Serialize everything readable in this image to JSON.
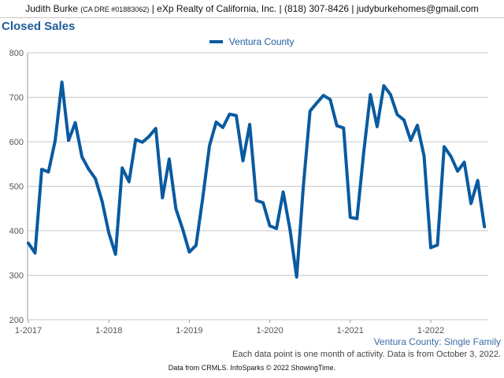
{
  "header": {
    "name": "Judith Burke",
    "dre": "(CA DRE #01883062)",
    "contact": "| eXp Realty of California, Inc. | (818) 307-8426 | judyburkehomes@gmail.com"
  },
  "footer": {
    "subtitle": "Ventura County: Single Family",
    "note": "Each data point is one month of activity. Data is from October 3, 2022.",
    "credit": "Data from CRMLS. InfoSparks © 2022 ShowingTime."
  },
  "colors": {
    "series": "#0a5aa0",
    "title": "#1f5c99",
    "grid": "#c8c8c8"
  },
  "chart_data": {
    "type": "line",
    "title": "Closed Sales",
    "legend_position": "top-center",
    "grid": true,
    "ylim": [
      200,
      800
    ],
    "yticks": [
      200,
      300,
      400,
      500,
      600,
      700,
      800
    ],
    "xticks": [
      "1-2017",
      "1-2018",
      "1-2019",
      "1-2020",
      "1-2021",
      "1-2022"
    ],
    "x_start": "2017-01",
    "series": [
      {
        "name": "Ventura County",
        "values": [
          372,
          350,
          538,
          532,
          603,
          734,
          603,
          643,
          566,
          538,
          517,
          466,
          395,
          347,
          541,
          510,
          605,
          599,
          612,
          630,
          474,
          561,
          449,
          404,
          352,
          367,
          473,
          591,
          644,
          632,
          662,
          659,
          557,
          639,
          468,
          463,
          411,
          405,
          487,
          403,
          296,
          500,
          669,
          687,
          704,
          695,
          636,
          631,
          430,
          427,
          575,
          706,
          634,
          726,
          706,
          661,
          649,
          603,
          637,
          568,
          362,
          368,
          589,
          567,
          534,
          554,
          461,
          513,
          409
        ]
      }
    ]
  }
}
